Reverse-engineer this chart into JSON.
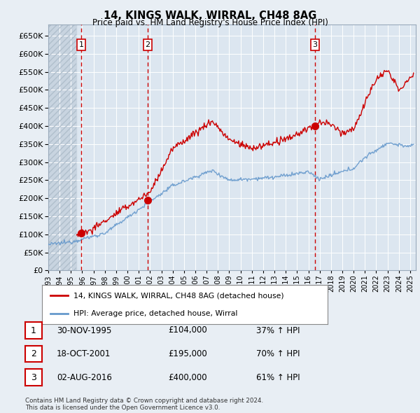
{
  "title": "14, KINGS WALK, WIRRAL, CH48 8AG",
  "subtitle": "Price paid vs. HM Land Registry's House Price Index (HPI)",
  "xlim_start": 1993.0,
  "xlim_end": 2025.5,
  "ylim": [
    0,
    680000
  ],
  "yticks": [
    0,
    50000,
    100000,
    150000,
    200000,
    250000,
    300000,
    350000,
    400000,
    450000,
    500000,
    550000,
    600000,
    650000
  ],
  "ytick_labels": [
    "£0",
    "£50K",
    "£100K",
    "£150K",
    "£200K",
    "£250K",
    "£300K",
    "£350K",
    "£400K",
    "£450K",
    "£500K",
    "£550K",
    "£600K",
    "£650K"
  ],
  "sale_color": "#cc0000",
  "hpi_color": "#6699cc",
  "sale_dates": [
    1995.92,
    2001.8,
    2016.59
  ],
  "sale_prices": [
    104000,
    195000,
    400000
  ],
  "sale_labels": [
    "1",
    "2",
    "3"
  ],
  "vline_color": "#cc0000",
  "legend_sale_label": "14, KINGS WALK, WIRRAL, CH48 8AG (detached house)",
  "legend_hpi_label": "HPI: Average price, detached house, Wirral",
  "table_rows": [
    {
      "num": "1",
      "date": "30-NOV-1995",
      "price": "£104,000",
      "change": "37% ↑ HPI"
    },
    {
      "num": "2",
      "date": "18-OCT-2001",
      "price": "£195,000",
      "change": "70% ↑ HPI"
    },
    {
      "num": "3",
      "date": "02-AUG-2016",
      "price": "£400,000",
      "change": "61% ↑ HPI"
    }
  ],
  "footer": "Contains HM Land Registry data © Crown copyright and database right 2024.\nThis data is licensed under the Open Government Licence v3.0.",
  "bg_color": "#e8eef4",
  "plot_bg": "#dce6f0",
  "grid_color": "#ffffff",
  "hatch_bg": "#c8d4e0"
}
